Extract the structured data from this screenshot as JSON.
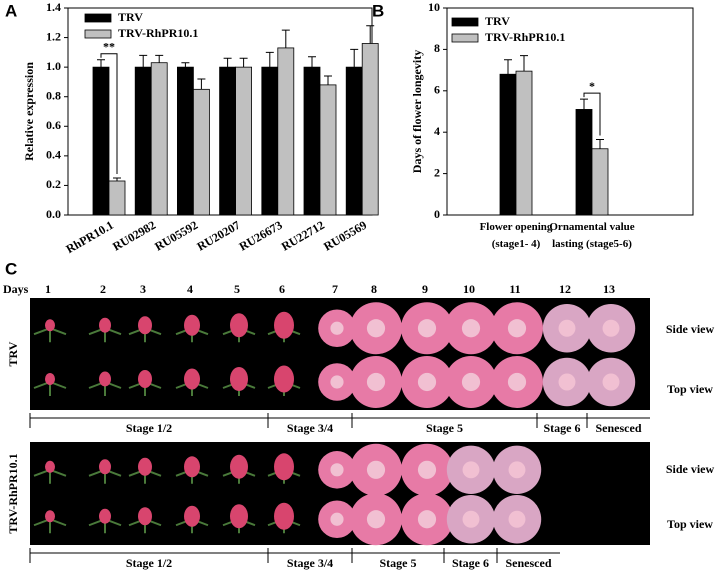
{
  "chart_data": [
    {
      "type": "bar",
      "panel": "A",
      "ylabel": "Relative expression",
      "categories": [
        "RhPR10.1",
        "RU02982",
        "RU05592",
        "RU20207",
        "RU26673",
        "RU22712",
        "RU05569"
      ],
      "series": [
        {
          "name": "TRV",
          "color": "#000000",
          "values": [
            1.0,
            1.0,
            1.0,
            1.0,
            1.0,
            1.0,
            1.0
          ],
          "errors": [
            0.05,
            0.08,
            0.03,
            0.06,
            0.1,
            0.07,
            0.12
          ]
        },
        {
          "name": "TRV-RhPR10.1",
          "color": "#c0c0c0",
          "values": [
            0.23,
            1.03,
            0.85,
            1.0,
            1.13,
            0.88,
            1.16
          ],
          "errors": [
            0.02,
            0.05,
            0.07,
            0.06,
            0.12,
            0.06,
            0.12
          ]
        }
      ],
      "annotation": "**",
      "ylim": [
        0,
        1.4
      ],
      "yticks": [
        {
          "value": 0,
          "label": "0.0"
        },
        0.2,
        0.4,
        0.6,
        0.8,
        {
          "value": 1,
          "label": "1.0"
        },
        1.2,
        1.4
      ]
    },
    {
      "type": "bar",
      "panel": "B",
      "ylabel": "Days of flower longevity",
      "categories": [
        "Flower opening (stage1- 4)",
        "Ornamental value lasting (stage5-6)"
      ],
      "series": [
        {
          "name": "TRV",
          "color": "#000000",
          "values": [
            6.8,
            5.1
          ],
          "errors": [
            0.7,
            0.5
          ]
        },
        {
          "name": "TRV-RhPR10.1",
          "color": "#c0c0c0",
          "values": [
            6.95,
            3.2
          ],
          "errors": [
            0.75,
            0.45
          ]
        }
      ],
      "annotation": "*",
      "ylim": [
        0,
        10
      ],
      "yticks": [
        0,
        2,
        4,
        6,
        8,
        10
      ]
    }
  ],
  "photo_panel": {
    "panel": "C",
    "days_label": "Days",
    "days": [
      1,
      2,
      3,
      4,
      5,
      6,
      7,
      8,
      9,
      10,
      11,
      12,
      13
    ],
    "views": [
      "Side view",
      "Top view"
    ],
    "rows": [
      {
        "label": "TRV",
        "stages": [
          "Stage 1/2",
          "Stage 3/4",
          "Stage 5",
          "Stage 6",
          "Senesced"
        ]
      },
      {
        "label": "TRV-RhPR10.1",
        "stages": [
          "Stage 1/2",
          "Stage 3/4",
          "Stage 5",
          "Stage 6",
          "Senesced"
        ]
      }
    ]
  }
}
